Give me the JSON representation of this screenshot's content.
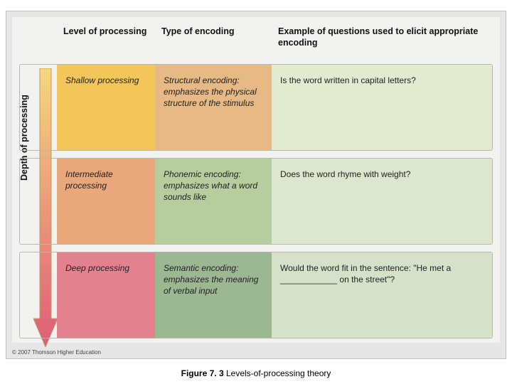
{
  "layout": {
    "panel_bg": "#e6e6e6",
    "inner_bg": "#f2f2f0",
    "cell_border": "#b8b8b0"
  },
  "depth_axis_label": "Depth of processing",
  "arrow": {
    "fill_top": "#f7d77b",
    "fill_bottom": "#de5d78",
    "stroke": "#b8a060"
  },
  "headers": {
    "level": "Level of processing",
    "type": "Type of encoding",
    "example": "Example of questions used to elicit appropriate encoding"
  },
  "rows": [
    {
      "level_text": "Shallow processing",
      "type_bold": "Structural encoding:",
      "type_rest": "emphasizes the physical structure of the stimulus",
      "example_text": "Is the word written in capital letters?",
      "colors": {
        "level_bg": "#f3c65a",
        "type_bg": "#e7b984",
        "example_bg": "#e3ead2"
      }
    },
    {
      "level_text": "Intermediate processing",
      "type_bold": "Phonemic encoding:",
      "type_rest": "emphasizes what a word sounds like",
      "example_text": "Does the word rhyme with weight?",
      "colors": {
        "level_bg": "#e9a77c",
        "type_bg": "#b6cd9e",
        "example_bg": "#dde6cf"
      }
    },
    {
      "level_text": "Deep processing",
      "type_bold": "Semantic encoding:",
      "type_rest": "emphasizes the meaning of verbal input",
      "example_text": "Would the word fit in the sentence: \"He met a ____________ on the street\"?",
      "colors": {
        "level_bg": "#e4818f",
        "type_bg": "#9bb892",
        "example_bg": "#d6e1c9"
      }
    }
  ],
  "copyright": "© 2007 Thomson Higher Education",
  "caption_bold": "Figure 7. 3",
  "caption_rest": "  Levels-of-processing theory"
}
